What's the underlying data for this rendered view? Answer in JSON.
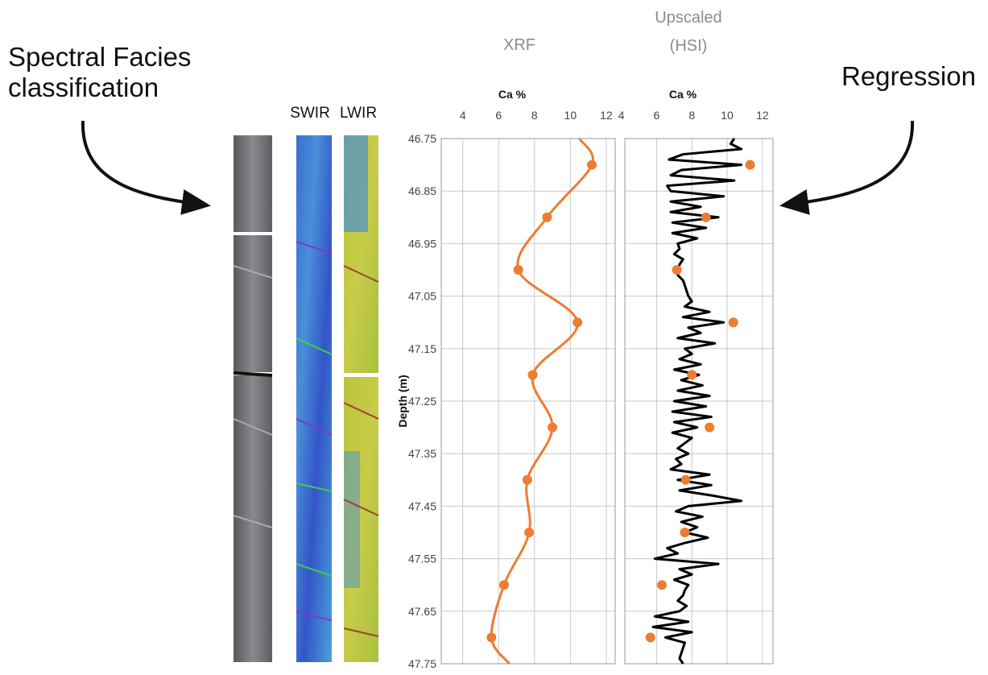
{
  "left_label": [
    "Spectral Facies",
    "classification"
  ],
  "right_label": "Regression",
  "core_columns": [
    "SWIR",
    "LWIR"
  ],
  "chart_data": [
    {
      "type": "line",
      "title": [
        "XRF"
      ],
      "xlabel": "Ca %",
      "ylabel": "Depth (m)",
      "xlim": [
        2.8,
        12.5
      ],
      "xticks": [
        4,
        6,
        8,
        10,
        12
      ],
      "ylim": [
        46.75,
        47.75
      ],
      "yticks": [
        46.75,
        46.85,
        46.95,
        47.05,
        47.15,
        47.25,
        47.35,
        47.45,
        47.55,
        47.65,
        47.75
      ],
      "y_inverted": true,
      "grid": true,
      "series": [
        {
          "style": "line",
          "smooth": true,
          "color": "#ed7d31",
          "depth": [
            46.75,
            46.8,
            46.9,
            47.0,
            47.1,
            47.2,
            47.3,
            47.4,
            47.5,
            47.6,
            47.7,
            47.75
          ],
          "values": [
            10.5,
            11.2,
            8.7,
            7.1,
            10.4,
            7.9,
            9.0,
            7.6,
            7.7,
            6.3,
            5.6,
            6.6
          ]
        },
        {
          "style": "markers",
          "color": "#ed7d31",
          "depth": [
            46.8,
            46.9,
            47.0,
            47.1,
            47.2,
            47.3,
            47.4,
            47.5,
            47.6,
            47.7
          ],
          "values": [
            11.2,
            8.7,
            7.1,
            10.4,
            7.9,
            9.0,
            7.6,
            7.7,
            6.3,
            5.6
          ]
        }
      ]
    },
    {
      "type": "line",
      "title": [
        "Upscaled",
        "(HSI)"
      ],
      "xlabel": "Ca %",
      "xlim": [
        4.2,
        12.6
      ],
      "xticks": [
        4,
        6,
        8,
        10,
        12
      ],
      "ylim": [
        46.75,
        47.75
      ],
      "ygrid": [
        46.75,
        46.85,
        46.95,
        47.05,
        47.15,
        47.25,
        47.35,
        47.45,
        47.55,
        47.65,
        47.75
      ],
      "y_inverted": true,
      "grid": true,
      "series": [
        {
          "style": "line",
          "smooth": false,
          "color": "#000000",
          "depth": [
            46.75,
            46.76,
            46.77,
            46.78,
            46.79,
            46.8,
            46.81,
            46.82,
            46.83,
            46.84,
            46.85,
            46.86,
            46.87,
            46.88,
            46.89,
            46.9,
            46.91,
            46.92,
            46.93,
            46.94,
            46.95,
            46.96,
            46.97,
            46.98,
            46.99,
            47.0,
            47.01,
            47.02,
            47.03,
            47.04,
            47.05,
            47.06,
            47.07,
            47.08,
            47.09,
            47.1,
            47.11,
            47.12,
            47.13,
            47.14,
            47.15,
            47.16,
            47.17,
            47.18,
            47.19,
            47.2,
            47.21,
            47.22,
            47.23,
            47.24,
            47.25,
            47.26,
            47.27,
            47.28,
            47.29,
            47.3,
            47.31,
            47.32,
            47.33,
            47.34,
            47.35,
            47.36,
            47.37,
            47.38,
            47.39,
            47.4,
            47.41,
            47.42,
            47.43,
            47.44,
            47.45,
            47.46,
            47.47,
            47.48,
            47.49,
            47.5,
            47.51,
            47.52,
            47.53,
            47.54,
            47.55,
            47.56,
            47.57,
            47.58,
            47.59,
            47.6,
            47.61,
            47.62,
            47.63,
            47.64,
            47.65,
            47.66,
            47.67,
            47.68,
            47.69,
            47.7,
            47.71,
            47.72,
            47.73,
            47.74,
            47.75
          ],
          "values": [
            10.4,
            10.2,
            10.8,
            7.5,
            6.7,
            10.8,
            7.4,
            6.8,
            10.4,
            6.6,
            6.8,
            9.8,
            6.8,
            8.5,
            6.8,
            9.5,
            6.9,
            8.8,
            6.9,
            8.3,
            7.2,
            7.3,
            7.0,
            7.5,
            7.3,
            7.2,
            7.2,
            7.5,
            7.6,
            7.7,
            7.8,
            8.0,
            7.6,
            9.0,
            7.5,
            9.8,
            7.8,
            8.5,
            7.2,
            9.3,
            7.6,
            8.0,
            7.3,
            8.5,
            7.0,
            8.4,
            7.4,
            8.6,
            7.2,
            9.0,
            7.0,
            8.8,
            6.9,
            9.1,
            7.0,
            8.3,
            6.9,
            8.0,
            7.6,
            7.2,
            7.8,
            7.1,
            7.4,
            6.8,
            9.0,
            7.2,
            9.1,
            7.3,
            9.2,
            10.8,
            7.8,
            7.1,
            8.6,
            7.4,
            8.3,
            7.6,
            8.9,
            7.6,
            6.6,
            7.2,
            5.9,
            9.5,
            7.3,
            8.0,
            7.0,
            7.8,
            7.6,
            7.5,
            7.2,
            7.7,
            7.3,
            5.9,
            7.8,
            5.8,
            8.0,
            6.5,
            7.6,
            7.5,
            7.4,
            7.3,
            7.5
          ]
        },
        {
          "style": "markers",
          "color": "#ed7d31",
          "depth": [
            46.8,
            46.9,
            47.0,
            47.1,
            47.2,
            47.3,
            47.4,
            47.5,
            47.6,
            47.7
          ],
          "values": [
            11.3,
            8.8,
            7.15,
            10.35,
            8.0,
            9.0,
            7.65,
            7.6,
            6.3,
            5.65
          ]
        }
      ]
    }
  ]
}
